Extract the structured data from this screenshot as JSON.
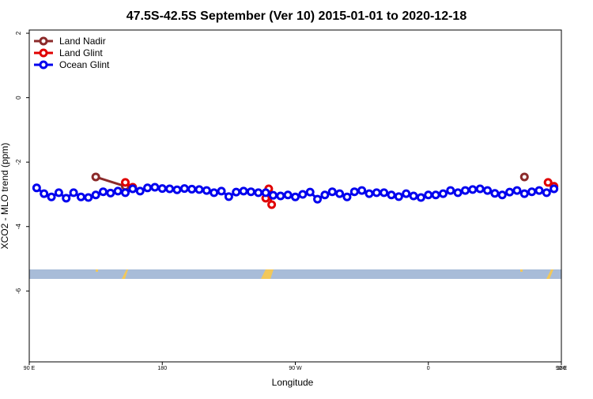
{
  "chart_data": {
    "type": "line",
    "title": "47.5S-42.5S September (Ver 10)   2015-01-01 to 2020-12-18",
    "x_label": "Longitude",
    "y_label": "XCO2 - MLO trend (ppm)",
    "xlim": [
      90,
      450
    ],
    "ylim": [
      -8.2,
      2.1
    ],
    "xticks": [
      {
        "value": 90,
        "label": "90 E"
      },
      {
        "value": 180,
        "label": "180"
      },
      {
        "value": 270,
        "label": "90 W"
      },
      {
        "value": 360,
        "label": "0"
      },
      {
        "value": 450,
        "label": "90 E"
      },
      {
        "value": 540,
        "label": "180"
      }
    ],
    "yticks": [
      2,
      0,
      -2,
      -4,
      -6
    ],
    "legend_position": "top-left",
    "series": [
      {
        "name": "Land Nadir",
        "color": "#8b2a2a",
        "x": [
          135,
          155,
          160,
          425
        ],
        "values": [
          -2.46,
          -2.75,
          null,
          -2.46
        ]
      },
      {
        "name": "Land Glint",
        "color": "#e00000",
        "x": [
          155,
          160,
          165,
          250,
          252,
          254,
          260,
          441,
          445
        ],
        "values": [
          -2.63,
          -2.78,
          null,
          -3.12,
          -2.83,
          -3.32,
          null,
          -2.63,
          -2.75
        ]
      },
      {
        "name": "Ocean Glint",
        "color": "#0000ee",
        "x": [
          95,
          100,
          105,
          110,
          115,
          120,
          125,
          130,
          135,
          140,
          145,
          150,
          155,
          160,
          165,
          170,
          175,
          180,
          185,
          190,
          195,
          200,
          205,
          210,
          215,
          220,
          225,
          230,
          235,
          240,
          245,
          250,
          255,
          260,
          265,
          270,
          275,
          280,
          285,
          290,
          295,
          300,
          305,
          310,
          315,
          320,
          325,
          330,
          335,
          340,
          345,
          350,
          355,
          360,
          365,
          370,
          375,
          380,
          385,
          390,
          395,
          400,
          405,
          410,
          415,
          420,
          425,
          430,
          435,
          440,
          445
        ],
        "values": [
          -2.8,
          -2.98,
          -3.08,
          -2.95,
          -3.12,
          -2.95,
          -3.08,
          -3.1,
          -3.02,
          -2.92,
          -2.96,
          -2.9,
          -2.95,
          -2.83,
          -2.9,
          -2.8,
          -2.78,
          -2.82,
          -2.83,
          -2.86,
          -2.82,
          -2.84,
          -2.85,
          -2.88,
          -2.95,
          -2.9,
          -3.07,
          -2.93,
          -2.9,
          -2.92,
          -2.95,
          -2.95,
          -3.03,
          -3.05,
          -3.02,
          -3.08,
          -3.0,
          -2.93,
          -3.15,
          -3.02,
          -2.92,
          -2.98,
          -3.08,
          -2.92,
          -2.88,
          -2.98,
          -2.95,
          -2.95,
          -3.02,
          -3.07,
          -2.98,
          -3.05,
          -3.1,
          -3.02,
          -3.02,
          -2.98,
          -2.88,
          -2.95,
          -2.88,
          -2.85,
          -2.83,
          -2.88,
          -2.97,
          -3.02,
          -2.93,
          -2.88,
          -2.98,
          -2.92,
          -2.88,
          -2.95,
          -2.83
        ]
      }
    ]
  }
}
